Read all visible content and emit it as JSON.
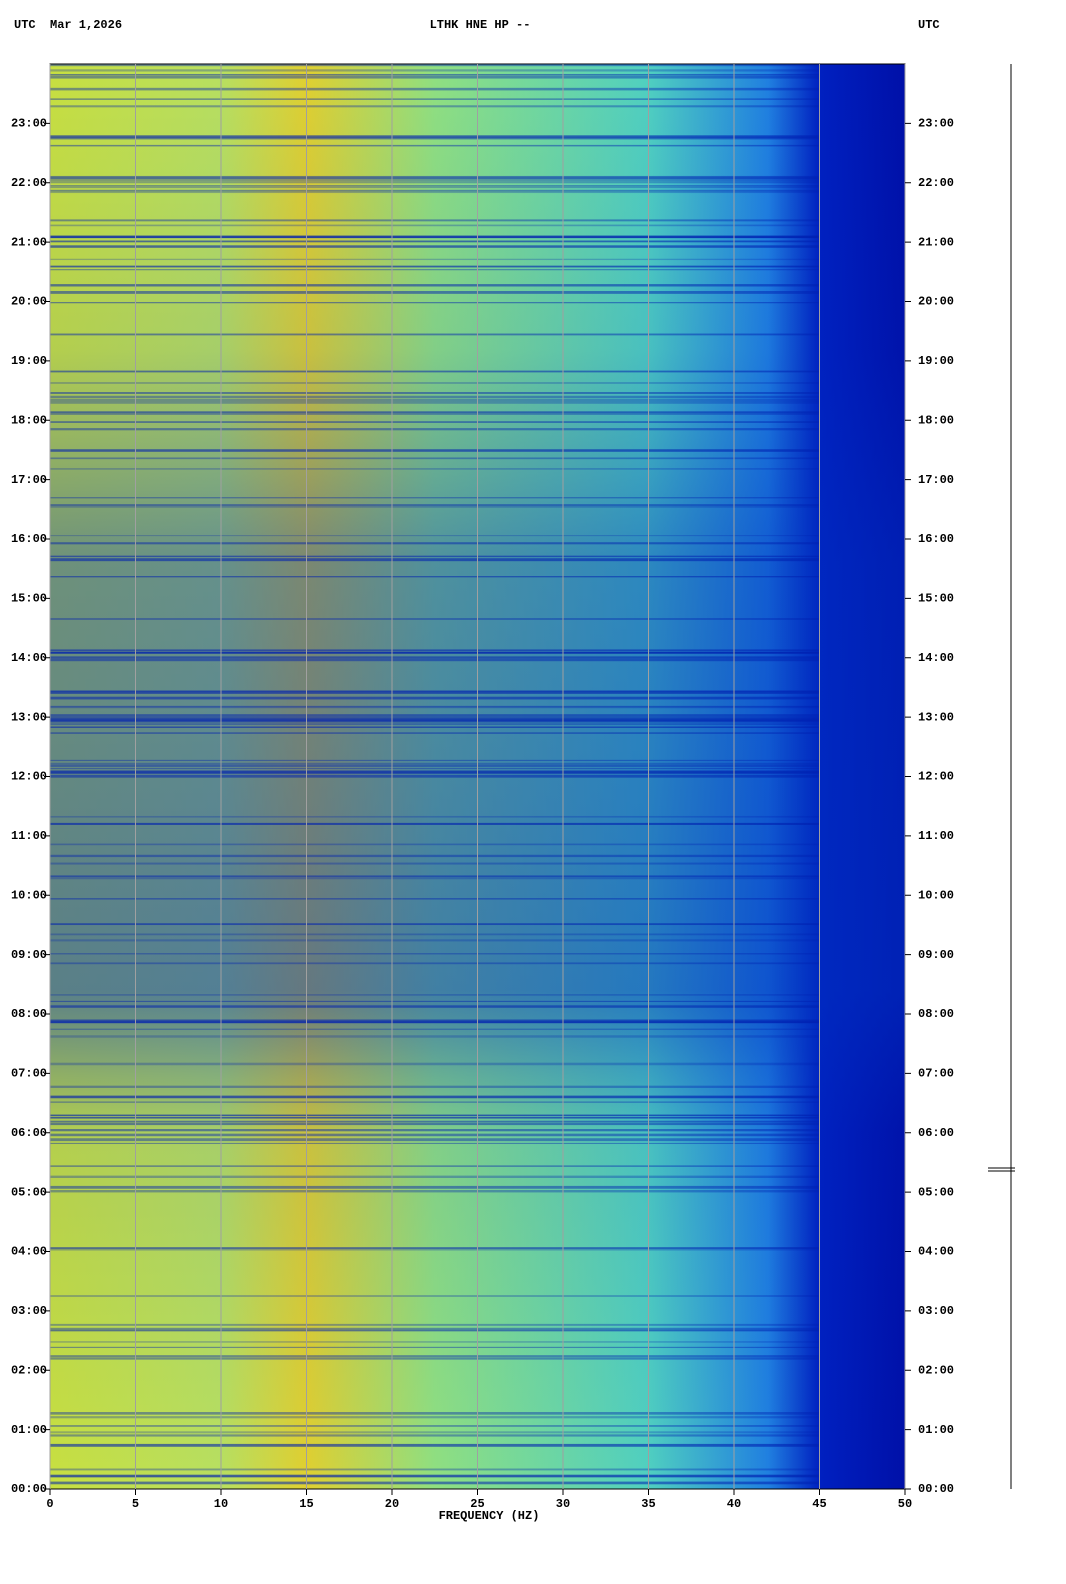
{
  "chart_data": {
    "type": "spectrogram",
    "header_left": "UTC  Mar 1,2026",
    "title": "LTHK HNE HP --",
    "header_right": "UTC",
    "xlabel": "FREQUENCY (HZ)",
    "xlim": [
      0,
      50
    ],
    "xticks": [
      0,
      5,
      10,
      15,
      20,
      25,
      30,
      35,
      40,
      45,
      50
    ],
    "ylim": [
      0,
      24
    ],
    "yticks": [
      {
        "value": 0,
        "label": "00:00"
      },
      {
        "value": 1,
        "label": "01:00"
      },
      {
        "value": 2,
        "label": "02:00"
      },
      {
        "value": 3,
        "label": "03:00"
      },
      {
        "value": 4,
        "label": "04:00"
      },
      {
        "value": 5,
        "label": "05:00"
      },
      {
        "value": 6,
        "label": "06:00"
      },
      {
        "value": 7,
        "label": "07:00"
      },
      {
        "value": 8,
        "label": "08:00"
      },
      {
        "value": 9,
        "label": "09:00"
      },
      {
        "value": 10,
        "label": "10:00"
      },
      {
        "value": 11,
        "label": "11:00"
      },
      {
        "value": 12,
        "label": "12:00"
      },
      {
        "value": 13,
        "label": "13:00"
      },
      {
        "value": 14,
        "label": "14:00"
      },
      {
        "value": 15,
        "label": "15:00"
      },
      {
        "value": 16,
        "label": "16:00"
      },
      {
        "value": 17,
        "label": "17:00"
      },
      {
        "value": 18,
        "label": "18:00"
      },
      {
        "value": 19,
        "label": "19:00"
      },
      {
        "value": 20,
        "label": "20:00"
      },
      {
        "value": 21,
        "label": "21:00"
      },
      {
        "value": 22,
        "label": "22:00"
      },
      {
        "value": 23,
        "label": "23:00"
      }
    ],
    "grid": true
  }
}
